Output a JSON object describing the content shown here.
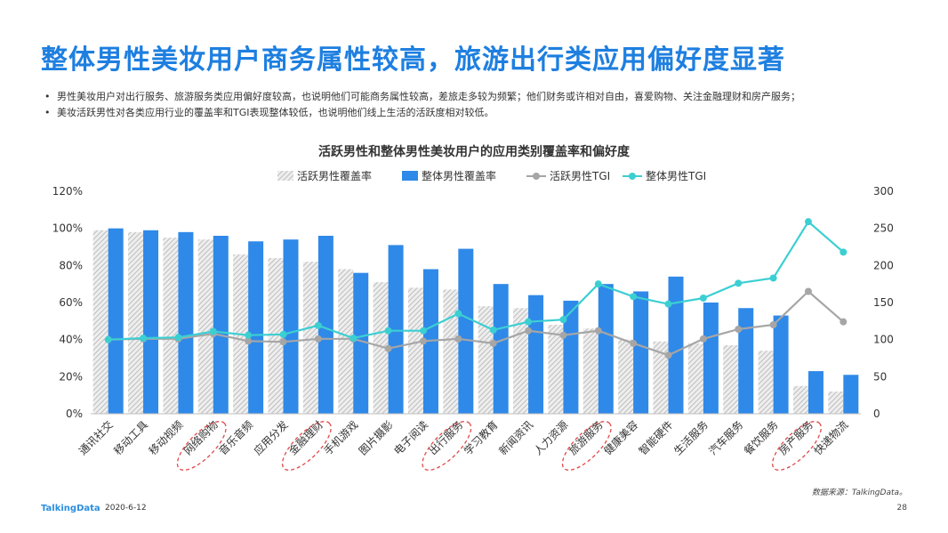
{
  "page": {
    "title": "整体男性美妆用户商务属性较高，旅游出行类应用偏好度显著",
    "bullets": [
      "男性美妆用户对出行服务、旅游服务类应用偏好度较高，也说明他们可能商务属性较高，差旅走多较为频繁；他们财务或许相对自由，喜爱购物、关注金融理财和房产服务；",
      "美妆活跃男性对各类应用行业的覆盖率和TGI表现整体较低，也说明他们线上生活的活跃度相对较低。"
    ],
    "bullet_marker": "•",
    "source": "数据来源：TalkingData。",
    "logo": "TalkingData",
    "date": "2020-6-12",
    "page_number": "28"
  },
  "chart_data": {
    "type": "bar",
    "title": "活跃男性和整体男性美妆用户的应用类别覆盖率和偏好度",
    "categories": [
      "通讯社交",
      "移动工具",
      "移动视频",
      "网络购物",
      "音乐音频",
      "应用分发",
      "金融理财",
      "手机游戏",
      "图片摄影",
      "电子阅读",
      "出行服务",
      "学习教育",
      "新闻资讯",
      "人力资源",
      "旅游服务",
      "健康美容",
      "智能硬件",
      "生活服务",
      "汽车服务",
      "餐饮服务",
      "房产服务",
      "快递物流"
    ],
    "highlighted_categories": [
      "网络购物",
      "金融理财",
      "出行服务",
      "旅游服务",
      "房产服务"
    ],
    "y_left": {
      "ticks": [
        "0%",
        "20%",
        "40%",
        "60%",
        "80%",
        "100%",
        "120%"
      ],
      "range": [
        0,
        120
      ]
    },
    "y_right": {
      "ticks": [
        "0",
        "50",
        "100",
        "150",
        "200",
        "250",
        "300"
      ],
      "range": [
        0,
        300
      ]
    },
    "legend_position": "top-center",
    "series": [
      {
        "name": "活跃男性覆盖率",
        "kind": "bar",
        "axis": "left",
        "color": "#c8c8c8",
        "pattern": "hatched",
        "values": [
          99,
          98,
          95,
          94,
          86,
          84,
          82,
          78,
          71,
          68,
          67,
          58,
          57,
          48,
          46,
          40,
          39,
          38,
          37,
          34,
          15,
          12
        ]
      },
      {
        "name": "整体男性覆盖率",
        "kind": "bar",
        "axis": "left",
        "color": "#2f89e8",
        "values": [
          100,
          99,
          98,
          96,
          93,
          94,
          96,
          76,
          91,
          78,
          89,
          70,
          64,
          61,
          70,
          66,
          74,
          60,
          57,
          53,
          23,
          21
        ]
      },
      {
        "name": "活跃男性TGI",
        "kind": "line",
        "axis": "right",
        "color": "#a6a6a6",
        "values": [
          100,
          101,
          101,
          108,
          98,
          97,
          101,
          101,
          88,
          98,
          101,
          95,
          112,
          106,
          112,
          95,
          79,
          101,
          114,
          120,
          165,
          124
        ]
      },
      {
        "name": "整体男性TGI",
        "kind": "line",
        "axis": "right",
        "color": "#3ccfd2",
        "values": [
          100,
          102,
          103,
          111,
          106,
          107,
          119,
          102,
          112,
          112,
          135,
          113,
          124,
          127,
          175,
          158,
          148,
          156,
          176,
          183,
          259,
          218
        ]
      }
    ]
  }
}
